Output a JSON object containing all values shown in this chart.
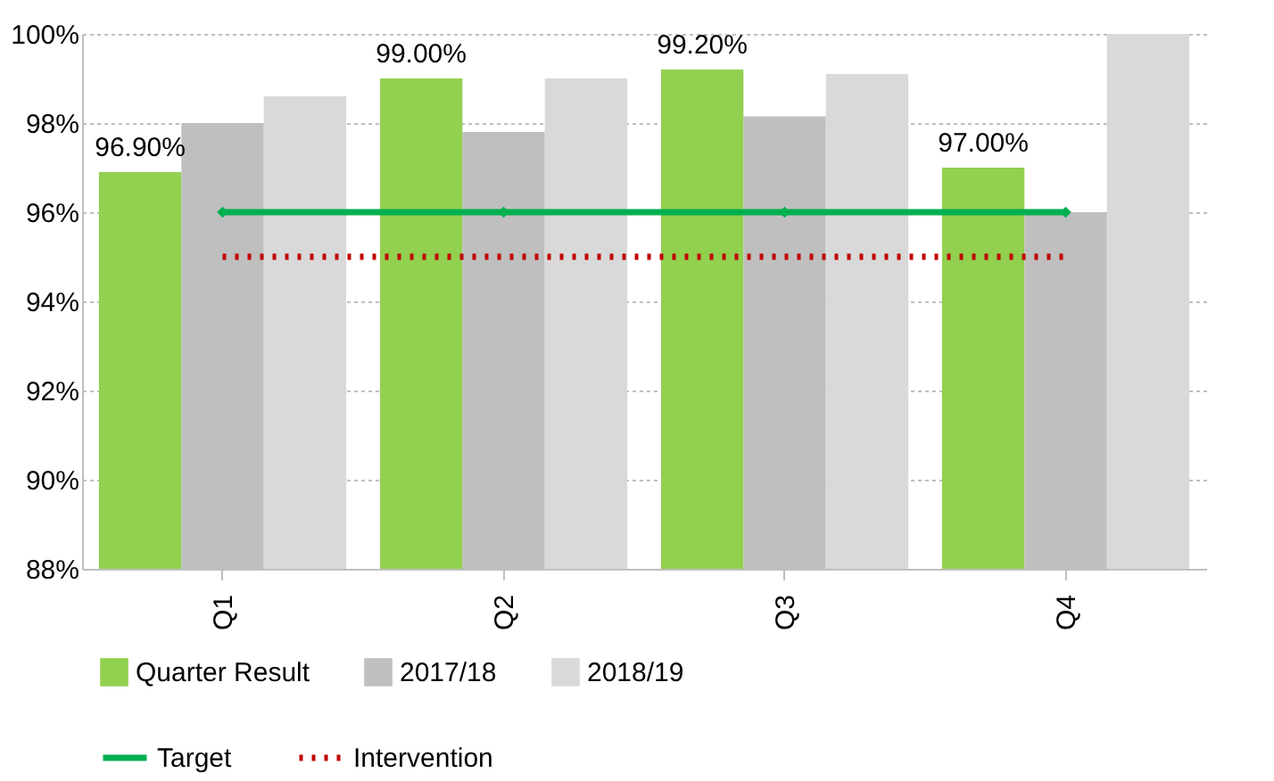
{
  "chart_data": {
    "type": "bar",
    "categories": [
      "Q1",
      "Q2",
      "Q3",
      "Q4"
    ],
    "series": [
      {
        "name": "Quarter Result",
        "color": "#92d050",
        "values": [
          96.9,
          99.0,
          99.2,
          97.0
        ],
        "value_labels": [
          "96.90%",
          "99.00%",
          "99.20%",
          "97.00%"
        ]
      },
      {
        "name": "2017/18",
        "color": "#bfbfbf",
        "values": [
          98.0,
          97.8,
          98.15,
          96.0
        ]
      },
      {
        "name": "2018/19",
        "color": "#d9d9d9",
        "values": [
          98.6,
          99.0,
          99.1,
          100.0
        ]
      },
      {
        "name": "Target",
        "type": "line",
        "color": "#00b050",
        "values": [
          96,
          96,
          96,
          96
        ],
        "marker": "diamond",
        "line_style": "solid"
      },
      {
        "name": "Intervention",
        "type": "line",
        "color": "#c00000",
        "values": [
          95,
          95,
          95,
          95
        ],
        "marker": "none",
        "line_style": "dotted"
      }
    ],
    "ylim": [
      88,
      100
    ],
    "yticks": [
      {
        "value": 88,
        "label": "88%"
      },
      {
        "value": 90,
        "label": "90%"
      },
      {
        "value": 92,
        "label": "92%"
      },
      {
        "value": 94,
        "label": "94%"
      },
      {
        "value": 96,
        "label": "96%"
      },
      {
        "value": 98,
        "label": "98%"
      },
      {
        "value": 100,
        "label": "100%"
      }
    ],
    "grid": "y",
    "legend": "bottom"
  }
}
